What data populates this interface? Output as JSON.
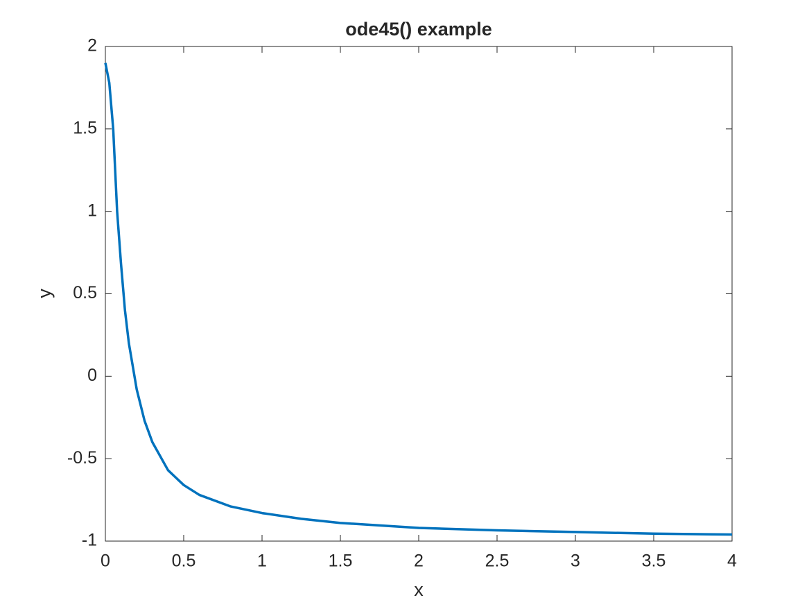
{
  "chart_data": {
    "type": "line",
    "title": "ode45() example",
    "x_label": "x",
    "y_label": "y",
    "x": [
      0,
      0.025,
      0.05,
      0.075,
      0.1,
      0.125,
      0.15,
      0.2,
      0.25,
      0.3,
      0.4,
      0.5,
      0.6,
      0.8,
      1,
      1.25,
      1.5,
      2,
      2.5,
      3,
      3.5,
      4
    ],
    "values": [
      1.9,
      1.78,
      1.5,
      1.0,
      0.68,
      0.4,
      0.2,
      -0.08,
      -0.27,
      -0.4,
      -0.57,
      -0.66,
      -0.72,
      -0.79,
      -0.83,
      -0.865,
      -0.89,
      -0.92,
      -0.935,
      -0.945,
      -0.955,
      -0.96
    ],
    "color": "#0072bd",
    "xlim": [
      0,
      4
    ],
    "xticks": [
      0,
      0.5,
      1,
      1.5,
      2,
      2.5,
      3,
      3.5,
      4
    ],
    "ylim": [
      -1,
      2
    ],
    "yticks": [
      -1,
      -0.5,
      0,
      0.5,
      1,
      1.5,
      2
    ],
    "grid": false
  }
}
